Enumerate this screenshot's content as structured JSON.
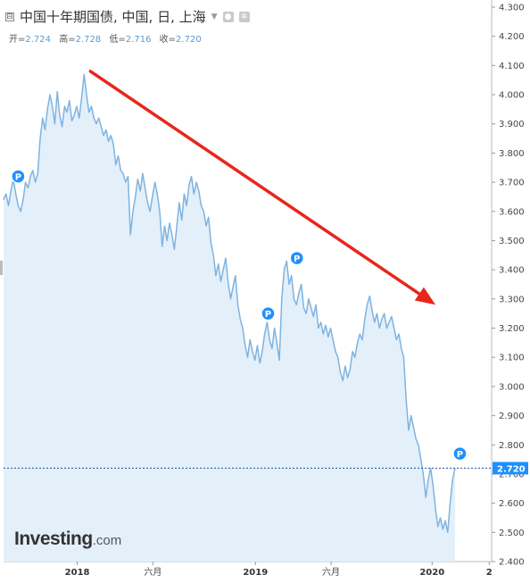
{
  "header": {
    "title": "中国十年期国债, 中国, 日, 上海",
    "collapse_glyph": "⊟",
    "ohlc": [
      {
        "label": "开=",
        "value": "2.724"
      },
      {
        "label": "高=",
        "value": "2.728"
      },
      {
        "label": "低=",
        "value": "2.716"
      },
      {
        "label": "收=",
        "value": "2.720"
      }
    ]
  },
  "logo": {
    "brand": "Investing",
    "suffix": ".com"
  },
  "colors": {
    "line": "#7fb3e0",
    "area": "#e3f0fa",
    "arrow": "#e8261c",
    "price_tag": "#1e90ff",
    "grid": "#d8d8d8"
  },
  "chart_data": {
    "type": "area",
    "y_ticks": [
      "4.300",
      "4.200",
      "4.100",
      "4.000",
      "3.900",
      "3.800",
      "3.700",
      "3.600",
      "3.500",
      "3.400",
      "3.300",
      "3.200",
      "3.100",
      "3.000",
      "2.900",
      "2.800",
      "2.700",
      "2.600",
      "2.500",
      "2.400"
    ],
    "ylim": [
      2.4,
      4.3
    ],
    "x_ticks": [
      {
        "label": "2018",
        "t": 0.151,
        "bold": true
      },
      {
        "label": "六月",
        "t": 0.306,
        "bold": false
      },
      {
        "label": "2019",
        "t": 0.516,
        "bold": true
      },
      {
        "label": "六月",
        "t": 0.671,
        "bold": false
      },
      {
        "label": "2020",
        "t": 0.878,
        "bold": true
      },
      {
        "label": "2",
        "t": 0.995,
        "bold": true
      }
    ],
    "last_price": "2.720",
    "last_value": 2.72,
    "series": [
      {
        "values": [
          [
            0.0,
            3.64
          ],
          [
            0.005,
            3.66
          ],
          [
            0.01,
            3.62
          ],
          [
            0.015,
            3.67
          ],
          [
            0.02,
            3.71
          ],
          [
            0.025,
            3.66
          ],
          [
            0.03,
            3.62
          ],
          [
            0.035,
            3.6
          ],
          [
            0.04,
            3.64
          ],
          [
            0.045,
            3.7
          ],
          [
            0.05,
            3.68
          ],
          [
            0.055,
            3.72
          ],
          [
            0.06,
            3.74
          ],
          [
            0.065,
            3.7
          ],
          [
            0.07,
            3.73
          ],
          [
            0.075,
            3.85
          ],
          [
            0.08,
            3.92
          ],
          [
            0.085,
            3.88
          ],
          [
            0.09,
            3.95
          ],
          [
            0.095,
            4.0
          ],
          [
            0.1,
            3.96
          ],
          [
            0.105,
            3.9
          ],
          [
            0.11,
            4.01
          ],
          [
            0.115,
            3.93
          ],
          [
            0.12,
            3.89
          ],
          [
            0.125,
            3.96
          ],
          [
            0.13,
            3.94
          ],
          [
            0.135,
            3.98
          ],
          [
            0.14,
            3.91
          ],
          [
            0.145,
            3.93
          ],
          [
            0.15,
            3.96
          ],
          [
            0.155,
            3.92
          ],
          [
            0.16,
            3.99
          ],
          [
            0.165,
            4.07
          ],
          [
            0.17,
            4.0
          ],
          [
            0.175,
            3.94
          ],
          [
            0.18,
            3.96
          ],
          [
            0.185,
            3.92
          ],
          [
            0.19,
            3.9
          ],
          [
            0.195,
            3.92
          ],
          [
            0.2,
            3.89
          ],
          [
            0.205,
            3.86
          ],
          [
            0.21,
            3.88
          ],
          [
            0.215,
            3.84
          ],
          [
            0.22,
            3.86
          ],
          [
            0.225,
            3.83
          ],
          [
            0.23,
            3.76
          ],
          [
            0.235,
            3.79
          ],
          [
            0.24,
            3.74
          ],
          [
            0.245,
            3.73
          ],
          [
            0.25,
            3.7
          ],
          [
            0.255,
            3.72
          ],
          [
            0.26,
            3.52
          ],
          [
            0.265,
            3.6
          ],
          [
            0.27,
            3.65
          ],
          [
            0.275,
            3.71
          ],
          [
            0.28,
            3.67
          ],
          [
            0.285,
            3.73
          ],
          [
            0.29,
            3.68
          ],
          [
            0.295,
            3.63
          ],
          [
            0.3,
            3.6
          ],
          [
            0.305,
            3.65
          ],
          [
            0.31,
            3.7
          ],
          [
            0.315,
            3.66
          ],
          [
            0.32,
            3.6
          ],
          [
            0.325,
            3.48
          ],
          [
            0.33,
            3.55
          ],
          [
            0.335,
            3.5
          ],
          [
            0.34,
            3.56
          ],
          [
            0.345,
            3.52
          ],
          [
            0.35,
            3.47
          ],
          [
            0.355,
            3.55
          ],
          [
            0.36,
            3.63
          ],
          [
            0.365,
            3.57
          ],
          [
            0.37,
            3.66
          ],
          [
            0.375,
            3.62
          ],
          [
            0.38,
            3.69
          ],
          [
            0.385,
            3.72
          ],
          [
            0.39,
            3.66
          ],
          [
            0.395,
            3.7
          ],
          [
            0.4,
            3.67
          ],
          [
            0.405,
            3.62
          ],
          [
            0.41,
            3.6
          ],
          [
            0.415,
            3.55
          ],
          [
            0.42,
            3.58
          ],
          [
            0.425,
            3.49
          ],
          [
            0.43,
            3.45
          ],
          [
            0.435,
            3.38
          ],
          [
            0.44,
            3.42
          ],
          [
            0.445,
            3.36
          ],
          [
            0.45,
            3.4
          ],
          [
            0.455,
            3.44
          ],
          [
            0.46,
            3.36
          ],
          [
            0.465,
            3.3
          ],
          [
            0.47,
            3.34
          ],
          [
            0.475,
            3.38
          ],
          [
            0.48,
            3.28
          ],
          [
            0.485,
            3.23
          ],
          [
            0.49,
            3.2
          ],
          [
            0.495,
            3.14
          ],
          [
            0.5,
            3.1
          ],
          [
            0.505,
            3.16
          ],
          [
            0.51,
            3.12
          ],
          [
            0.515,
            3.09
          ],
          [
            0.52,
            3.14
          ],
          [
            0.525,
            3.08
          ],
          [
            0.53,
            3.12
          ],
          [
            0.535,
            3.18
          ],
          [
            0.54,
            3.22
          ],
          [
            0.545,
            3.16
          ],
          [
            0.55,
            3.13
          ],
          [
            0.555,
            3.2
          ],
          [
            0.56,
            3.15
          ],
          [
            0.565,
            3.09
          ],
          [
            0.57,
            3.3
          ],
          [
            0.575,
            3.4
          ],
          [
            0.58,
            3.43
          ],
          [
            0.585,
            3.35
          ],
          [
            0.59,
            3.38
          ],
          [
            0.595,
            3.3
          ],
          [
            0.6,
            3.28
          ],
          [
            0.605,
            3.32
          ],
          [
            0.61,
            3.35
          ],
          [
            0.615,
            3.27
          ],
          [
            0.62,
            3.25
          ],
          [
            0.625,
            3.3
          ],
          [
            0.63,
            3.27
          ],
          [
            0.635,
            3.24
          ],
          [
            0.64,
            3.28
          ],
          [
            0.645,
            3.2
          ],
          [
            0.65,
            3.22
          ],
          [
            0.655,
            3.18
          ],
          [
            0.66,
            3.21
          ],
          [
            0.665,
            3.17
          ],
          [
            0.67,
            3.2
          ],
          [
            0.675,
            3.16
          ],
          [
            0.68,
            3.12
          ],
          [
            0.685,
            3.1
          ],
          [
            0.69,
            3.05
          ],
          [
            0.695,
            3.02
          ],
          [
            0.7,
            3.07
          ],
          [
            0.705,
            3.03
          ],
          [
            0.71,
            3.06
          ],
          [
            0.715,
            3.12
          ],
          [
            0.72,
            3.1
          ],
          [
            0.725,
            3.15
          ],
          [
            0.73,
            3.18
          ],
          [
            0.735,
            3.16
          ],
          [
            0.74,
            3.23
          ],
          [
            0.745,
            3.28
          ],
          [
            0.75,
            3.31
          ],
          [
            0.755,
            3.26
          ],
          [
            0.76,
            3.22
          ],
          [
            0.765,
            3.25
          ],
          [
            0.77,
            3.2
          ],
          [
            0.775,
            3.23
          ],
          [
            0.78,
            3.25
          ],
          [
            0.785,
            3.2
          ],
          [
            0.79,
            3.22
          ],
          [
            0.795,
            3.24
          ],
          [
            0.8,
            3.2
          ],
          [
            0.805,
            3.16
          ],
          [
            0.81,
            3.18
          ],
          [
            0.815,
            3.13
          ],
          [
            0.82,
            3.1
          ],
          [
            0.825,
            2.95
          ],
          [
            0.83,
            2.85
          ],
          [
            0.835,
            2.9
          ],
          [
            0.84,
            2.86
          ],
          [
            0.845,
            2.82
          ],
          [
            0.85,
            2.8
          ],
          [
            0.855,
            2.75
          ],
          [
            0.86,
            2.7
          ],
          [
            0.865,
            2.62
          ],
          [
            0.87,
            2.68
          ],
          [
            0.875,
            2.72
          ],
          [
            0.88,
            2.66
          ],
          [
            0.885,
            2.58
          ],
          [
            0.89,
            2.52
          ],
          [
            0.895,
            2.55
          ],
          [
            0.9,
            2.51
          ],
          [
            0.905,
            2.54
          ],
          [
            0.91,
            2.5
          ],
          [
            0.915,
            2.6
          ],
          [
            0.92,
            2.68
          ],
          [
            0.925,
            2.72
          ]
        ]
      }
    ],
    "pins": [
      {
        "t": 0.03,
        "v": 3.72,
        "label": "P"
      },
      {
        "t": 0.542,
        "v": 3.25,
        "label": "P"
      },
      {
        "t": 0.601,
        "v": 3.44,
        "label": "P"
      },
      {
        "t": 0.935,
        "v": 2.77,
        "label": "P"
      }
    ],
    "trend_arrow": {
      "from": [
        0.178,
        4.08
      ],
      "to": [
        0.885,
        3.28
      ]
    }
  }
}
